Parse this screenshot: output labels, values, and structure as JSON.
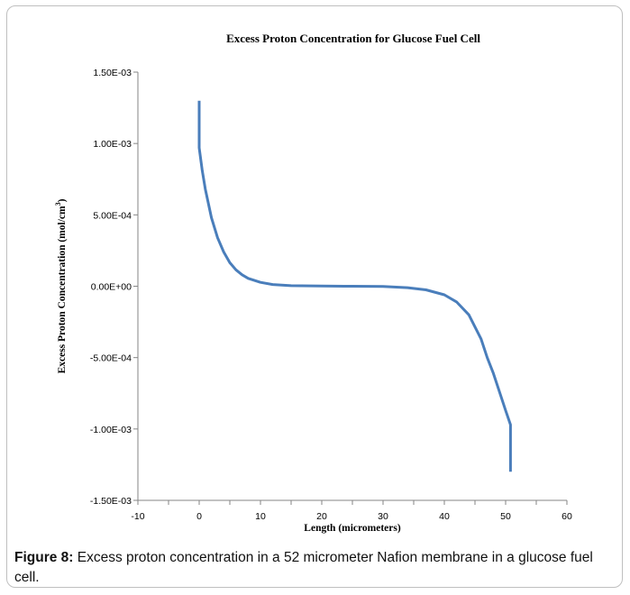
{
  "chart_data": {
    "type": "line",
    "title": "Excess Proton Concentration for Glucose Fuel Cell",
    "xlabel": "Length (micrometers)",
    "ylabel_main": "Excess Proton Concentration (mol/cm",
    "ylabel_sup": "3",
    "ylabel_close": ")",
    "xlim": [
      -10,
      60
    ],
    "ylim": [
      -0.0015,
      0.0015
    ],
    "xticks": [
      -10,
      0,
      10,
      20,
      30,
      40,
      50,
      60
    ],
    "xtick_labels": [
      "-10",
      "0",
      "10",
      "20",
      "30",
      "40",
      "50",
      "60"
    ],
    "yticks": [
      0.0015,
      0.001,
      0.0005,
      0,
      -0.0005,
      -0.001,
      -0.0015
    ],
    "ytick_labels": [
      "1.50E-03",
      "1.00E-03",
      "5.00E-04",
      "0.00E+00",
      "-5.00E-04",
      "-1.00E-03",
      "-1.50E-03"
    ],
    "grid": false,
    "legend": "none",
    "series": [
      {
        "color": "#4a7ebb",
        "x": [
          0,
          0,
          0.5,
          1,
          2,
          3,
          4,
          5,
          6,
          7,
          8,
          10,
          12,
          15,
          20,
          25,
          30,
          34,
          37,
          40,
          42,
          44,
          46,
          47,
          48,
          49,
          50,
          50.8,
          50.8
        ],
        "y": [
          0.0013,
          0.00097,
          0.00081,
          0.00068,
          0.00048,
          0.00034,
          0.00024,
          0.000165,
          0.000115,
          8e-05,
          5.5e-05,
          2.7e-05,
          1.2e-05,
          4e-06,
          1e-06,
          0,
          -2e-06,
          -1e-05,
          -2.5e-05,
          -6e-05,
          -0.00011,
          -0.0002,
          -0.00037,
          -0.0005,
          -0.00061,
          -0.00074,
          -0.00087,
          -0.00097,
          -0.0013
        ]
      }
    ]
  },
  "caption": {
    "label": "Figure 8:",
    "text": " Excess proton concentration in a 52 micrometer Nafion membrane in a glucose fuel cell."
  }
}
